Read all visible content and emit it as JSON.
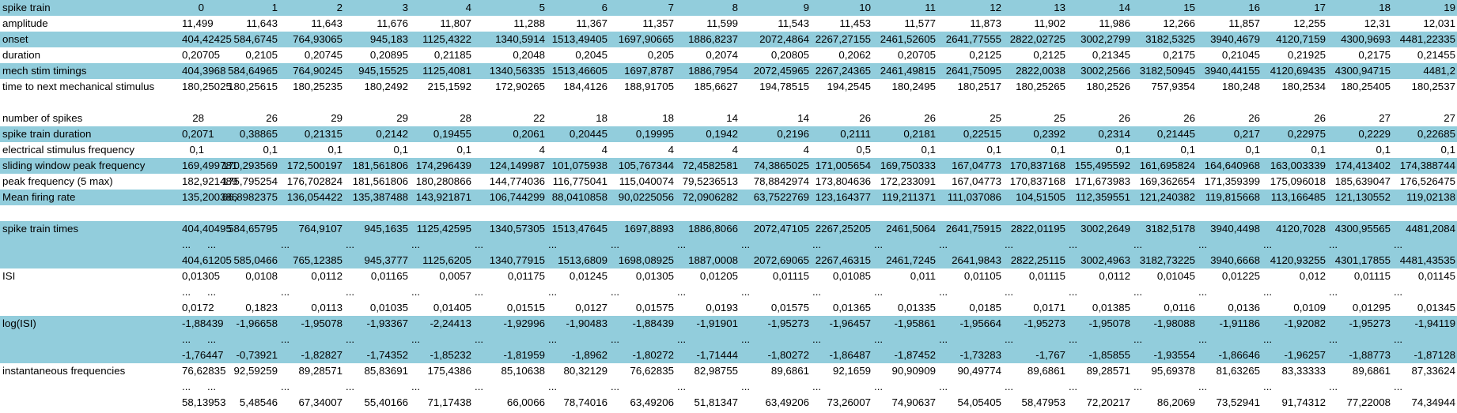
{
  "sheet": {
    "header": {
      "label": "spike train",
      "values": [
        "0",
        "1",
        "2",
        "3",
        "4",
        "5",
        "6",
        "7",
        "8",
        "9",
        "10",
        "11",
        "12",
        "13",
        "14",
        "15",
        "16",
        "17",
        "18",
        "19"
      ]
    },
    "rows": [
      {
        "label": "amplitude",
        "values": [
          "11,499",
          "11,643",
          "11,643",
          "11,676",
          "11,807",
          "11,288",
          "11,367",
          "11,357",
          "11,599",
          "11,543",
          "11,453",
          "11,577",
          "11,873",
          "11,902",
          "11,986",
          "12,266",
          "11,857",
          "12,255",
          "12,31",
          "12,031"
        ]
      },
      {
        "label": "onset",
        "values": [
          "404,42425",
          "584,6745",
          "764,93065",
          "945,183",
          "1125,4322",
          "1340,5914",
          "1513,49405",
          "1697,90665",
          "1886,8237",
          "2072,4864",
          "2267,27155",
          "2461,52605",
          "2641,77555",
          "2822,02725",
          "3002,2799",
          "3182,5325",
          "3940,4679",
          "4120,7159",
          "4300,9693",
          "4481,22335"
        ]
      },
      {
        "label": "duration",
        "values": [
          "0,20705",
          "0,2105",
          "0,20745",
          "0,20895",
          "0,21185",
          "0,2048",
          "0,2045",
          "0,205",
          "0,2074",
          "0,20805",
          "0,2062",
          "0,20705",
          "0,2125",
          "0,2125",
          "0,21345",
          "0,2175",
          "0,21045",
          "0,21925",
          "0,2175",
          "0,21455"
        ]
      },
      {
        "label": "mech stim timings",
        "values": [
          "404,3968",
          "584,64965",
          "764,90245",
          "945,15525",
          "1125,4081",
          "1340,56335",
          "1513,46605",
          "1697,8787",
          "1886,7954",
          "2072,45965",
          "2267,24365",
          "2461,49815",
          "2641,75095",
          "2822,0038",
          "3002,2566",
          "3182,50945",
          "3940,44155",
          "4120,69435",
          "4300,94715",
          "4481,2"
        ]
      },
      {
        "label": "time to next mechanical stimulus",
        "values": [
          "180,25025",
          "180,25615",
          "180,25235",
          "180,2492",
          "215,1592",
          "172,90265",
          "184,4126",
          "188,91705",
          "185,6627",
          "194,78515",
          "194,2545",
          "180,2495",
          "180,2517",
          "180,25265",
          "180,2526",
          "757,9354",
          "180,248",
          "180,2534",
          "180,25405",
          "180,2537"
        ]
      },
      {
        "label": "number of spikes",
        "values": [
          "28",
          "26",
          "29",
          "29",
          "28",
          "22",
          "18",
          "18",
          "14",
          "14",
          "26",
          "26",
          "25",
          "25",
          "26",
          "26",
          "26",
          "26",
          "27",
          "27"
        ]
      },
      {
        "label": "spike train duration",
        "values": [
          "0,2071",
          "0,38865",
          "0,21315",
          "0,2142",
          "0,19455",
          "0,2061",
          "0,20445",
          "0,19995",
          "0,1942",
          "0,2196",
          "0,2111",
          "0,2181",
          "0,22515",
          "0,2392",
          "0,2314",
          "0,21445",
          "0,217",
          "0,22975",
          "0,2229",
          "0,22685"
        ]
      },
      {
        "label": "electrical stimulus frequency",
        "values": [
          "0,1",
          "0,1",
          "0,1",
          "0,1",
          "0,1",
          "4",
          "4",
          "4",
          "4",
          "4",
          "0,5",
          "0,1",
          "0,1",
          "0,1",
          "0,1",
          "0,1",
          "0,1",
          "0,1",
          "0,1",
          "0,1"
        ]
      },
      {
        "label": "sliding window peak frequency",
        "values": [
          "169,499781",
          "170,293569",
          "172,500197",
          "181,561806",
          "174,296439",
          "124,149987",
          "101,075938",
          "105,767344",
          "72,4582581",
          "74,3865025",
          "171,005654",
          "169,750333",
          "167,04773",
          "170,837168",
          "155,495592",
          "161,695824",
          "164,640968",
          "163,003339",
          "174,413402",
          "174,388744"
        ]
      },
      {
        "label": "peak frequency (5 max)",
        "values": [
          "182,921489",
          "175,795254",
          "176,702824",
          "181,561806",
          "180,280866",
          "144,774036",
          "116,775041",
          "115,040074",
          "79,5236513",
          "78,8842974",
          "173,804636",
          "172,233091",
          "167,04773",
          "170,837168",
          "171,673983",
          "169,362654",
          "171,359399",
          "175,096018",
          "185,639047",
          "176,526475"
        ]
      },
      {
        "label": "Mean firing rate",
        "values": [
          "135,200386",
          "66,8982375",
          "136,054422",
          "135,387488",
          "143,921871",
          "106,744299",
          "88,0410858",
          "90,0225056",
          "72,0906282",
          "63,7522769",
          "123,164377",
          "119,211371",
          "111,037086",
          "104,51505",
          "112,359551",
          "121,240382",
          "119,815668",
          "113,166485",
          "121,130552",
          "119,02138"
        ]
      }
    ],
    "blocks": [
      {
        "label": "spike train times",
        "first": [
          "404,40495",
          "584,65795",
          "764,9107",
          "945,1635",
          "1125,42595",
          "1340,57305",
          "1513,47645",
          "1697,8893",
          "1886,8066",
          "2072,47105",
          "2267,25205",
          "2461,5064",
          "2641,75915",
          "2822,01195",
          "3002,2649",
          "3182,5178",
          "3940,4498",
          "4120,7028",
          "4300,95565",
          "4481,2084"
        ],
        "dots": [
          "...",
          "...",
          "...",
          "...",
          "...",
          "...",
          "...",
          "...",
          "...",
          "...",
          "...",
          "...",
          "...",
          "...",
          "...",
          "...",
          "...",
          "...",
          "...",
          "..."
        ],
        "last": [
          "404,61205",
          "585,0466",
          "765,12385",
          "945,3777",
          "1125,6205",
          "1340,77915",
          "1513,6809",
          "1698,08925",
          "1887,0008",
          "2072,69065",
          "2267,46315",
          "2461,7245",
          "2641,9843",
          "2822,25115",
          "3002,4963",
          "3182,73225",
          "3940,6668",
          "4120,93255",
          "4301,17855",
          "4481,43535"
        ]
      },
      {
        "label": "ISI",
        "first": [
          "0,01305",
          "0,0108",
          "0,0112",
          "0,01165",
          "0,0057",
          "0,01175",
          "0,01245",
          "0,01305",
          "0,01205",
          "0,01115",
          "0,01085",
          "0,011",
          "0,01105",
          "0,01115",
          "0,0112",
          "0,01045",
          "0,01225",
          "0,012",
          "0,01115",
          "0,01145"
        ],
        "dots": [
          "...",
          "...",
          "...",
          "...",
          "...",
          "...",
          "...",
          "...",
          "...",
          "...",
          "...",
          "...",
          "...",
          "...",
          "...",
          "...",
          "...",
          "...",
          "...",
          "..."
        ],
        "last": [
          "0,0172",
          "0,1823",
          "0,0113",
          "0,01035",
          "0,01405",
          "0,01515",
          "0,0127",
          "0,01575",
          "0,0193",
          "0,01575",
          "0,01365",
          "0,01335",
          "0,0185",
          "0,0171",
          "0,01385",
          "0,0116",
          "0,0136",
          "0,0109",
          "0,01295",
          "0,01345"
        ]
      },
      {
        "label": "log(ISI)",
        "first": [
          "-1,88439",
          "-1,96658",
          "-1,95078",
          "-1,93367",
          "-2,24413",
          "-1,92996",
          "-1,90483",
          "-1,88439",
          "-1,91901",
          "-1,95273",
          "-1,96457",
          "-1,95861",
          "-1,95664",
          "-1,95273",
          "-1,95078",
          "-1,98088",
          "-1,91186",
          "-1,92082",
          "-1,95273",
          "-1,94119"
        ],
        "dots": [
          "...",
          "...",
          "...",
          "...",
          "...",
          "...",
          "...",
          "...",
          "...",
          "...",
          "...",
          "...",
          "...",
          "...",
          "...",
          "...",
          "...",
          "...",
          "...",
          "..."
        ],
        "last": [
          "-1,76447",
          "-0,73921",
          "-1,82827",
          "-1,74352",
          "-1,85232",
          "-1,81959",
          "-1,8962",
          "-1,80272",
          "-1,71444",
          "-1,80272",
          "-1,86487",
          "-1,87452",
          "-1,73283",
          "-1,767",
          "-1,85855",
          "-1,93554",
          "-1,86646",
          "-1,96257",
          "-1,88773",
          "-1,87128"
        ]
      },
      {
        "label": "instantaneous frequencies",
        "first": [
          "76,62835",
          "92,59259",
          "89,28571",
          "85,83691",
          "175,4386",
          "85,10638",
          "80,32129",
          "76,62835",
          "82,98755",
          "89,6861",
          "92,1659",
          "90,90909",
          "90,49774",
          "89,6861",
          "89,28571",
          "95,69378",
          "81,63265",
          "83,33333",
          "89,6861",
          "87,33624"
        ],
        "dots": [
          "...",
          "...",
          "...",
          "...",
          "...",
          "...",
          "...",
          "...",
          "...",
          "...",
          "...",
          "...",
          "...",
          "...",
          "...",
          "...",
          "...",
          "...",
          "...",
          "..."
        ],
        "last": [
          "58,13953",
          "5,48546",
          "67,34007",
          "55,40166",
          "71,17438",
          "66,0066",
          "78,74016",
          "63,49206",
          "51,81347",
          "63,49206",
          "73,26007",
          "74,90637",
          "54,05405",
          "58,47953",
          "72,20217",
          "86,2069",
          "73,52941",
          "91,74312",
          "77,22008",
          "74,34944"
        ]
      }
    ]
  }
}
